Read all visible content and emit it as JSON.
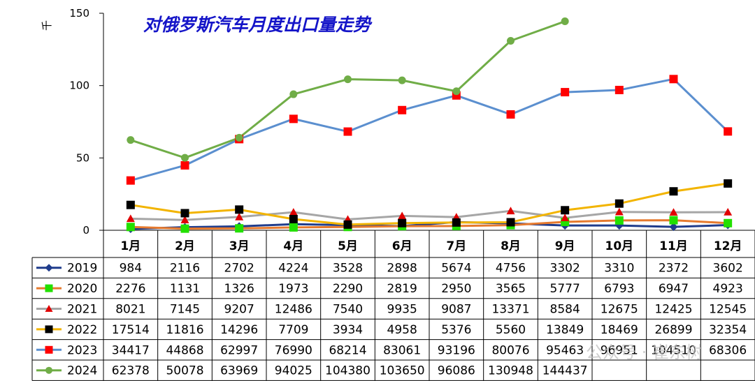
{
  "chart_data": {
    "type": "line",
    "title": "对俄罗斯汽车月度出口量走势",
    "ylabel": "千",
    "ylim": [
      0,
      150
    ],
    "yticks": [
      0,
      50,
      100,
      150
    ],
    "grid": false,
    "legend_placement": "data-table-left",
    "categories": [
      "1月",
      "2月",
      "3月",
      "4月",
      "5月",
      "6月",
      "7月",
      "8月",
      "9月",
      "10月",
      "11月",
      "12月"
    ],
    "series": [
      {
        "name": "2019",
        "color": "#1f3c8c",
        "marker": "diamond",
        "values": [
          984,
          2116,
          2702,
          4224,
          3528,
          2898,
          5674,
          4756,
          3302,
          3310,
          2372,
          3602
        ],
        "labels": [
          "984",
          "2116",
          "2702",
          "4224",
          "3528",
          "2898",
          "5674",
          "4756",
          "3302",
          "3310",
          "2372",
          "3602"
        ]
      },
      {
        "name": "2020",
        "color": "#e67a2e",
        "marker": "square",
        "marker_color": "#22e000",
        "values": [
          2276,
          1131,
          1326,
          1973,
          2290,
          2819,
          2950,
          3565,
          5777,
          6793,
          6947,
          4923
        ],
        "labels": [
          "2276",
          "1131",
          "1326",
          "1973",
          "2290",
          "2819",
          "2950",
          "3565",
          "5777",
          "6793",
          "6947",
          "4923"
        ]
      },
      {
        "name": "2021",
        "color": "#a6a6a6",
        "marker": "triangle",
        "marker_color": "#e00000",
        "values": [
          8021,
          7145,
          9207,
          12486,
          7540,
          9935,
          9087,
          13371,
          8584,
          12675,
          12425,
          12545
        ],
        "labels": [
          "8021",
          "7145",
          "9207",
          "12486",
          "7540",
          "9935",
          "9087",
          "13371",
          "8584",
          "12675",
          "12425",
          "12545"
        ]
      },
      {
        "name": "2022",
        "color": "#f2b400",
        "marker": "square",
        "marker_color": "#000000",
        "values": [
          17514,
          11816,
          14296,
          7709,
          3934,
          4958,
          5376,
          5560,
          13849,
          18469,
          26899,
          32354
        ],
        "labels": [
          "17514",
          "11816",
          "14296",
          "7709",
          "3934",
          "4958",
          "5376",
          "5560",
          "13849",
          "18469",
          "26899",
          "32354"
        ]
      },
      {
        "name": "2023",
        "color": "#5b8fcf",
        "marker": "square",
        "marker_color": "#ff0000",
        "values": [
          34417,
          44868,
          62997,
          76990,
          68214,
          83061,
          93196,
          80076,
          95463,
          96951,
          104510,
          68306
        ],
        "labels": [
          "34417",
          "44868",
          "62997",
          "76990",
          "68214",
          "83061",
          "93196",
          "80076",
          "95463",
          "96951",
          "104510",
          "68306"
        ]
      },
      {
        "name": "2024",
        "color": "#70ad47",
        "marker": "circle",
        "marker_color": "#70ad47",
        "values": [
          62378,
          50078,
          63969,
          94025,
          104380,
          103650,
          96086,
          130948,
          144437,
          null,
          null,
          null
        ],
        "labels": [
          "62378",
          "50078",
          "63969",
          "94025",
          "104380",
          "103650",
          "96086",
          "130948",
          "144437",
          "",
          "",
          ""
        ]
      }
    ]
  },
  "watermark": "公众号 · 崔东树"
}
